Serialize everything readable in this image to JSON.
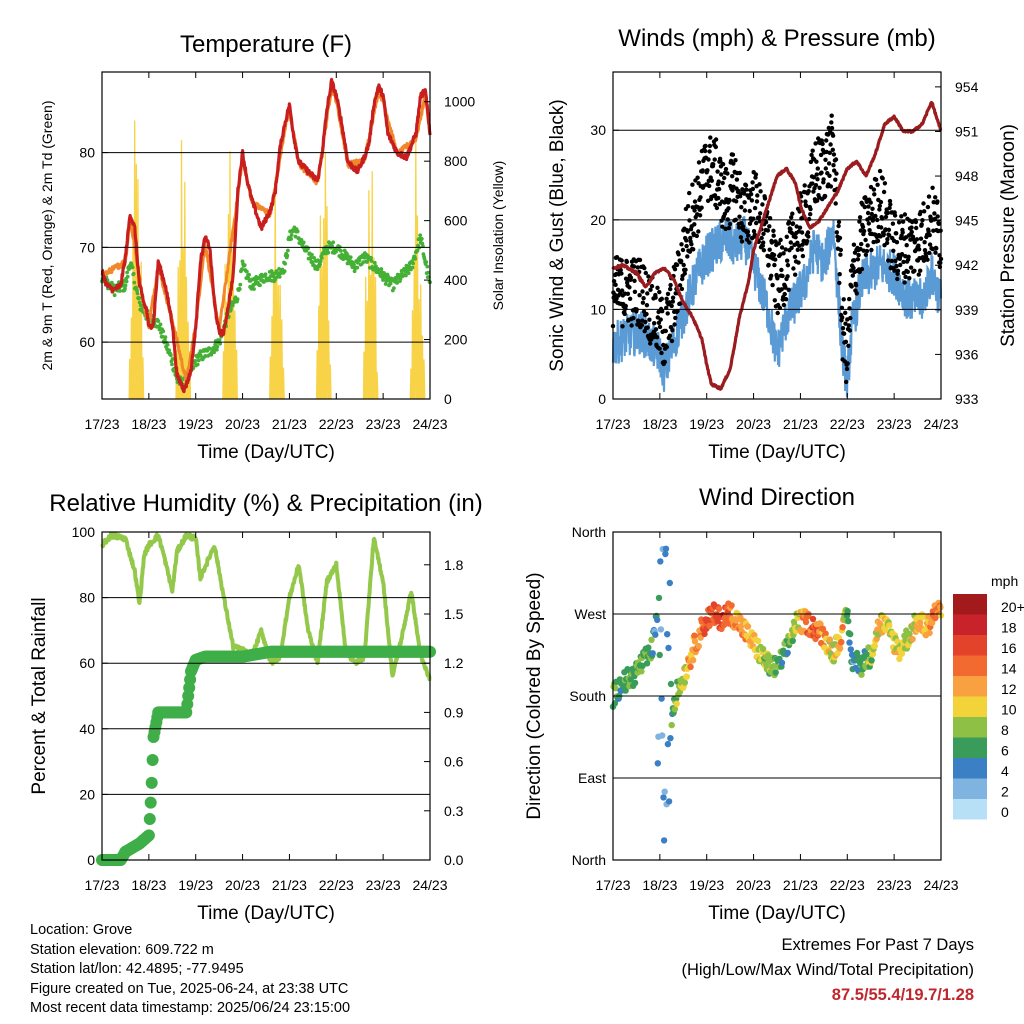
{
  "chart_data": [
    {
      "type": "line",
      "title": "Temperature (F)",
      "xlabel": "Time (Day/UTC)",
      "ylabel": "2m & 9m T (Red, Orange) & 2m Td (Green)",
      "y2label": "Solar Insolation (Yellow)",
      "x_ticks": [
        "17/23",
        "18/23",
        "19/23",
        "20/23",
        "21/23",
        "22/23",
        "23/23",
        "24/23"
      ],
      "ylim": [
        54,
        88.5
      ],
      "y_ticks": [
        60,
        70,
        80
      ],
      "y2lim": [
        0,
        1100
      ],
      "y2_ticks": [
        0,
        200,
        400,
        600,
        800,
        1000
      ],
      "series": [
        {
          "name": "2m T",
          "color": "#c81e1e",
          "axis": "left",
          "x": [
            0,
            0.1,
            0.25,
            0.4,
            0.5,
            0.6,
            0.7,
            0.8,
            0.9,
            0.95,
            1.0,
            1.1,
            1.2,
            1.35,
            1.5,
            1.6,
            1.7,
            1.75,
            1.8,
            1.9,
            2.0,
            2.1,
            2.2,
            2.3,
            2.4,
            2.5,
            2.6,
            2.8,
            2.9,
            3.0,
            3.1,
            3.2,
            3.4,
            3.6,
            3.7,
            3.8,
            3.9,
            4.0,
            4.1,
            4.2,
            4.4,
            4.6,
            4.7,
            4.8,
            4.9,
            5.0,
            5.1,
            5.25,
            5.45,
            5.6,
            5.7,
            5.8,
            5.9,
            6.0,
            6.1,
            6.3,
            6.5,
            6.7,
            6.8,
            6.9,
            7.0
          ],
          "y": [
            67.5,
            66,
            65.5,
            66,
            69,
            73.5,
            72,
            66,
            64,
            63.5,
            61.5,
            62,
            68.5,
            66,
            62,
            56.5,
            55.5,
            55,
            55.5,
            57,
            61.5,
            68.5,
            71,
            70,
            64,
            61,
            61,
            67,
            76,
            80,
            77,
            75,
            72,
            74,
            76,
            80.5,
            83,
            85,
            81.5,
            79,
            78,
            77,
            80,
            84.5,
            87.5,
            86,
            83.5,
            79,
            78,
            79.5,
            81,
            85,
            87,
            86,
            82,
            80,
            79.5,
            82,
            86,
            86.5,
            82
          ]
        },
        {
          "name": "9m T",
          "color": "#f0882a",
          "axis": "left",
          "x": [
            0,
            0.5,
            0.6,
            0.9,
            1.0,
            1.2,
            1.5,
            1.8,
            2.0,
            2.2,
            2.5,
            2.9,
            3.0,
            3.2,
            3.6,
            3.9,
            4.0,
            4.2,
            4.6,
            4.9,
            5.0,
            5.25,
            5.6,
            5.9,
            6.0,
            6.3,
            6.7,
            6.9,
            7.0
          ],
          "y": [
            67,
            68.5,
            73,
            63.8,
            61.8,
            68,
            62.3,
            55.8,
            61.8,
            70.5,
            61.3,
            75.5,
            79.5,
            74.7,
            73.5,
            82.5,
            84.5,
            78.8,
            76.8,
            87,
            85.5,
            78.7,
            79.2,
            86.5,
            85.5,
            79.8,
            81.5,
            86,
            82
          ]
        },
        {
          "name": "2m Td",
          "color": "#44b035",
          "axis": "left",
          "x": [
            0,
            0.25,
            0.5,
            0.6,
            0.8,
            1.0,
            1.2,
            1.5,
            1.6,
            1.75,
            1.9,
            2.0,
            2.1,
            2.3,
            2.5,
            2.7,
            2.9,
            3.0,
            3.2,
            3.5,
            3.7,
            3.9,
            4.0,
            4.1,
            4.3,
            4.6,
            4.8,
            5.0,
            5.2,
            5.4,
            5.6,
            5.8,
            6.0,
            6.2,
            6.4,
            6.6,
            6.8,
            7.0
          ],
          "y": [
            67,
            65.5,
            66,
            68.5,
            64,
            62.5,
            62,
            58,
            56,
            55.5,
            57,
            58,
            58.5,
            59,
            60,
            63,
            65,
            68,
            66,
            67,
            67,
            68,
            71,
            72,
            70,
            68,
            70,
            70,
            69,
            68,
            69,
            68,
            67,
            66,
            67,
            68,
            71,
            66
          ]
        },
        {
          "name": "Solar Insolation",
          "color": "#f8d347",
          "axis": "right",
          "days": [
            0,
            1,
            2,
            3,
            4,
            5,
            6
          ],
          "peaks": [
            1000,
            1070,
            1010,
            900,
            960,
            1020,
            980
          ]
        }
      ]
    },
    {
      "type": "scatter",
      "title": "Winds (mph) & Pressure (mb)",
      "xlabel": "Time (Day/UTC)",
      "ylabel": "Sonic Wind & Gust (Blue, Black)",
      "y2label": "Station Pressure (Maroon)",
      "x_ticks": [
        "17/23",
        "18/23",
        "19/23",
        "20/23",
        "21/23",
        "22/23",
        "23/23",
        "24/23"
      ],
      "ylim": [
        0,
        36.5
      ],
      "y_ticks": [
        0,
        10,
        20,
        30
      ],
      "y2lim": [
        933,
        955
      ],
      "y2_ticks": [
        933,
        936,
        939,
        942,
        945,
        948,
        951,
        954
      ],
      "series": [
        {
          "name": "Sonic Wind",
          "color": "#5b9bd5",
          "axis": "left",
          "x": [
            0,
            0.3,
            0.6,
            1.0,
            1.1,
            1.4,
            1.6,
            1.8,
            2.0,
            2.2,
            2.4,
            2.6,
            2.8,
            3.0,
            3.3,
            3.5,
            3.7,
            3.9,
            4.1,
            4.3,
            4.5,
            4.7,
            4.8,
            4.9,
            5.0,
            5.1,
            5.3,
            5.5,
            5.7,
            6.0,
            6.3,
            6.6,
            6.8,
            7.0
          ],
          "y": [
            6,
            7,
            7.5,
            5,
            3,
            8,
            11,
            14,
            16,
            17,
            18,
            17,
            18,
            15,
            10,
            5,
            9,
            11,
            13,
            17,
            15,
            19,
            12,
            5,
            2,
            8,
            13,
            14,
            15,
            14,
            11,
            11,
            14,
            11
          ]
        },
        {
          "name": "Gust",
          "color": "#000000",
          "axis": "left",
          "x": [
            0,
            0.3,
            0.6,
            1.0,
            1.1,
            1.4,
            1.6,
            1.8,
            2.0,
            2.2,
            2.4,
            2.6,
            2.8,
            3.0,
            3.3,
            3.5,
            3.7,
            3.9,
            4.1,
            4.3,
            4.5,
            4.7,
            4.8,
            4.9,
            5.0,
            5.1,
            5.3,
            5.5,
            5.7,
            6.0,
            6.3,
            6.6,
            6.8,
            7.0
          ],
          "y": [
            12,
            12,
            12,
            8,
            7,
            13,
            19,
            22,
            26,
            25,
            22,
            24,
            20,
            22,
            18,
            13,
            15,
            18,
            20,
            25,
            26,
            28,
            20,
            8,
            5,
            13,
            18,
            20,
            22,
            17,
            17,
            18,
            20,
            18
          ]
        },
        {
          "name": "Station Pressure",
          "color": "#9b1c1f",
          "axis": "right",
          "x": [
            0,
            0.2,
            0.5,
            0.7,
            0.9,
            1.1,
            1.3,
            1.5,
            1.7,
            1.9,
            2.0,
            2.1,
            2.3,
            2.5,
            2.7,
            2.9,
            3.0,
            3.2,
            3.4,
            3.5,
            3.7,
            3.9,
            4.0,
            4.2,
            4.4,
            4.6,
            4.8,
            5.0,
            5.2,
            5.4,
            5.6,
            5.8,
            6.0,
            6.2,
            6.4,
            6.6,
            6.8,
            7.0
          ],
          "y": [
            941.8,
            942,
            941.5,
            940.5,
            941.5,
            941.8,
            941,
            939.5,
            938.5,
            937,
            935.3,
            934,
            933.7,
            935,
            938.5,
            941,
            943,
            945,
            947,
            948,
            948.5,
            947.5,
            946,
            944.5,
            945,
            946,
            947,
            948.5,
            949,
            948,
            949.5,
            951.5,
            952,
            951,
            951,
            951.5,
            953,
            951
          ]
        }
      ]
    },
    {
      "type": "line",
      "title": "Relative Humidity (%) & Precipitation (in)",
      "xlabel": "Time (Day/UTC)",
      "ylabel": "Percent & Total Rainfall",
      "x_ticks": [
        "17/23",
        "18/23",
        "19/23",
        "20/23",
        "21/23",
        "22/23",
        "23/23",
        "24/23"
      ],
      "ylim": [
        0,
        100
      ],
      "y_ticks": [
        0,
        20,
        40,
        60,
        80,
        100
      ],
      "y2lim": [
        0,
        2.0
      ],
      "y2_ticks": [
        "0.0",
        "0.3",
        "0.6",
        "0.9",
        "1.2",
        "1.5",
        "1.8"
      ],
      "series": [
        {
          "name": "Relative Humidity",
          "color": "#93c84a",
          "axis": "left",
          "x": [
            0,
            0.2,
            0.5,
            0.7,
            0.8,
            0.9,
            1.0,
            1.2,
            1.3,
            1.5,
            1.6,
            1.8,
            2.0,
            2.1,
            2.4,
            2.6,
            2.8,
            3.0,
            3.2,
            3.4,
            3.6,
            3.8,
            4.0,
            4.2,
            4.4,
            4.6,
            4.8,
            5.0,
            5.2,
            5.4,
            5.6,
            5.8,
            6.0,
            6.2,
            6.4,
            6.6,
            6.8,
            7.0
          ],
          "y": [
            96,
            99,
            98,
            88,
            78,
            93,
            96,
            99,
            94,
            82,
            94,
            99,
            98,
            86,
            96,
            80,
            65,
            64,
            62,
            70,
            60,
            62,
            80,
            90,
            70,
            60,
            85,
            90,
            64,
            60,
            62,
            98,
            85,
            56,
            68,
            82,
            62,
            55
          ]
        },
        {
          "name": "Total Precipitation",
          "color": "#3fae49",
          "axis": "right",
          "x": [
            0,
            0.4,
            0.5,
            0.8,
            1.0,
            1.05,
            1.1,
            1.2,
            1.6,
            1.8,
            1.9,
            2.0,
            2.2,
            3.0,
            3.6,
            4.5,
            7.0
          ],
          "y": [
            0,
            0,
            0.05,
            0.1,
            0.15,
            0.4,
            0.75,
            0.9,
            0.9,
            0.9,
            1.15,
            1.22,
            1.24,
            1.24,
            1.27,
            1.27,
            1.27
          ]
        }
      ]
    },
    {
      "type": "scatter",
      "title": "Wind Direction",
      "xlabel": "Time (Day/UTC)",
      "ylabel": "Direction (Colored By Speed)",
      "x_ticks": [
        "17/23",
        "18/23",
        "19/23",
        "20/23",
        "21/23",
        "22/23",
        "23/23",
        "24/23"
      ],
      "y_ticks": [
        "North",
        "East",
        "South",
        "West",
        "North"
      ],
      "ylim": [
        0,
        360
      ],
      "legend_title": "mph",
      "legend_labels": [
        "20+",
        "18",
        "16",
        "14",
        "12",
        "10",
        "8",
        "6",
        "4",
        "2",
        "0"
      ],
      "legend_colors": [
        "#a21a1c",
        "#c8232a",
        "#e4432b",
        "#f26a30",
        "#f9a140",
        "#f3d33a",
        "#8dc044",
        "#3a9c5a",
        "#3b7fc4",
        "#7fb4e0",
        "#b7e0f7"
      ],
      "series": [
        {
          "name": "Direction",
          "axis": "left",
          "x": [
            0,
            0.2,
            0.4,
            0.6,
            0.8,
            0.9,
            1.0,
            1.05,
            1.1,
            1.15,
            1.2,
            1.3,
            1.5,
            1.7,
            1.9,
            2.1,
            2.3,
            2.5,
            2.7,
            2.9,
            3.1,
            3.3,
            3.5,
            3.7,
            3.9,
            4.1,
            4.3,
            4.5,
            4.7,
            4.9,
            5.0,
            5.1,
            5.3,
            5.5,
            5.7,
            5.9,
            6.1,
            6.3,
            6.5,
            6.7,
            6.9,
            7.0
          ],
          "y": [
            180,
            195,
            200,
            215,
            225,
            250,
            290,
            200,
            150,
            60,
            140,
            175,
            200,
            230,
            255,
            270,
            265,
            272,
            260,
            245,
            230,
            215,
            210,
            230,
            260,
            262,
            255,
            245,
            228,
            250,
            270,
            220,
            215,
            225,
            262,
            250,
            230,
            245,
            262,
            255,
            275,
            270
          ],
          "speed": [
            6,
            6,
            7,
            7,
            7,
            4,
            4,
            3,
            2,
            3,
            5,
            6,
            10,
            12,
            14,
            15,
            16,
            14,
            12,
            11,
            9,
            8,
            7,
            6,
            9,
            13,
            15,
            12,
            9,
            12,
            7,
            4,
            6,
            8,
            10,
            10,
            9,
            8,
            11,
            12,
            14,
            12
          ]
        }
      ]
    }
  ],
  "info": {
    "location": "Location: Grove",
    "elevation": "Station elevation: 609.722 m",
    "latlon": "Station lat/lon: 42.4895; -77.9495",
    "created": "Figure created on Tue, 2025-06-24, at 23:38 UTC",
    "timestamp": "Most recent data timestamp: 2025/06/24 23:15:00"
  },
  "extremes": {
    "title": "Extremes For Past 7 Days",
    "subtitle": "(High/Low/Max Wind/Total Precipitation)",
    "values": "87.5/55.4/19.7/1.28"
  }
}
